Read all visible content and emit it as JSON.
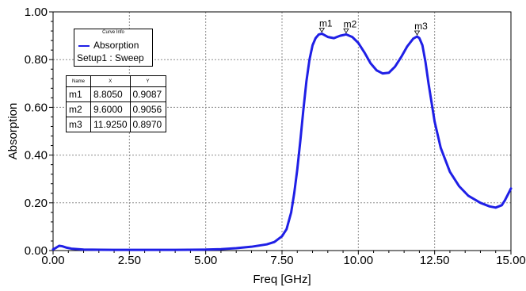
{
  "chart_data": {
    "type": "line",
    "xlabel": "Freq [GHz]",
    "ylabel": "Absorption",
    "xlim": [
      0,
      15
    ],
    "ylim": [
      0,
      1
    ],
    "xticks": [
      "0.00",
      "2.50",
      "5.00",
      "7.50",
      "10.00",
      "12.50",
      "15.00"
    ],
    "yticks": [
      "0.00",
      "0.20",
      "0.40",
      "0.60",
      "0.80",
      "1.00"
    ],
    "series_color": "#1f1fe6",
    "series": [
      {
        "name": "Absorption",
        "x": [
          0,
          0.1,
          0.2,
          0.3,
          0.45,
          0.6,
          1.0,
          2.0,
          3.0,
          4.0,
          5.0,
          5.5,
          6.0,
          6.5,
          7.0,
          7.25,
          7.5,
          7.65,
          7.8,
          7.9,
          8.0,
          8.1,
          8.2,
          8.3,
          8.4,
          8.5,
          8.6,
          8.7,
          8.805,
          9.0,
          9.2,
          9.4,
          9.6,
          9.8,
          10.0,
          10.2,
          10.4,
          10.6,
          10.8,
          11.0,
          11.2,
          11.4,
          11.6,
          11.8,
          11.925,
          12.0,
          12.1,
          12.2,
          12.3,
          12.5,
          12.7,
          13.0,
          13.3,
          13.6,
          14.0,
          14.3,
          14.5,
          14.7,
          14.8,
          14.9,
          15.0
        ],
        "values": [
          0.005,
          0.012,
          0.02,
          0.018,
          0.012,
          0.008,
          0.004,
          0.003,
          0.003,
          0.003,
          0.004,
          0.006,
          0.01,
          0.016,
          0.026,
          0.036,
          0.06,
          0.09,
          0.16,
          0.24,
          0.34,
          0.46,
          0.59,
          0.71,
          0.8,
          0.86,
          0.89,
          0.905,
          0.9087,
          0.895,
          0.89,
          0.9,
          0.9056,
          0.895,
          0.87,
          0.83,
          0.785,
          0.755,
          0.742,
          0.745,
          0.77,
          0.81,
          0.855,
          0.888,
          0.897,
          0.89,
          0.86,
          0.79,
          0.7,
          0.54,
          0.43,
          0.33,
          0.27,
          0.23,
          0.2,
          0.185,
          0.18,
          0.19,
          0.21,
          0.235,
          0.26
        ]
      }
    ],
    "markers": [
      {
        "name": "m1",
        "x": 8.805,
        "y": 0.9087
      },
      {
        "name": "m2",
        "x": 9.6,
        "y": 0.9056
      },
      {
        "name": "m3",
        "x": 11.925,
        "y": 0.897
      }
    ]
  },
  "legend": {
    "title": "Curve Info",
    "series_name": "Absorption",
    "subtitle": "Setup1 : Sweep"
  },
  "marker_table": {
    "headers": [
      "Name",
      "X",
      "Y"
    ],
    "rows": [
      [
        "m1",
        "8.8050",
        "0.9087"
      ],
      [
        "m2",
        "9.6000",
        "0.9056"
      ],
      [
        "m3",
        "11.9250",
        "0.8970"
      ]
    ]
  }
}
